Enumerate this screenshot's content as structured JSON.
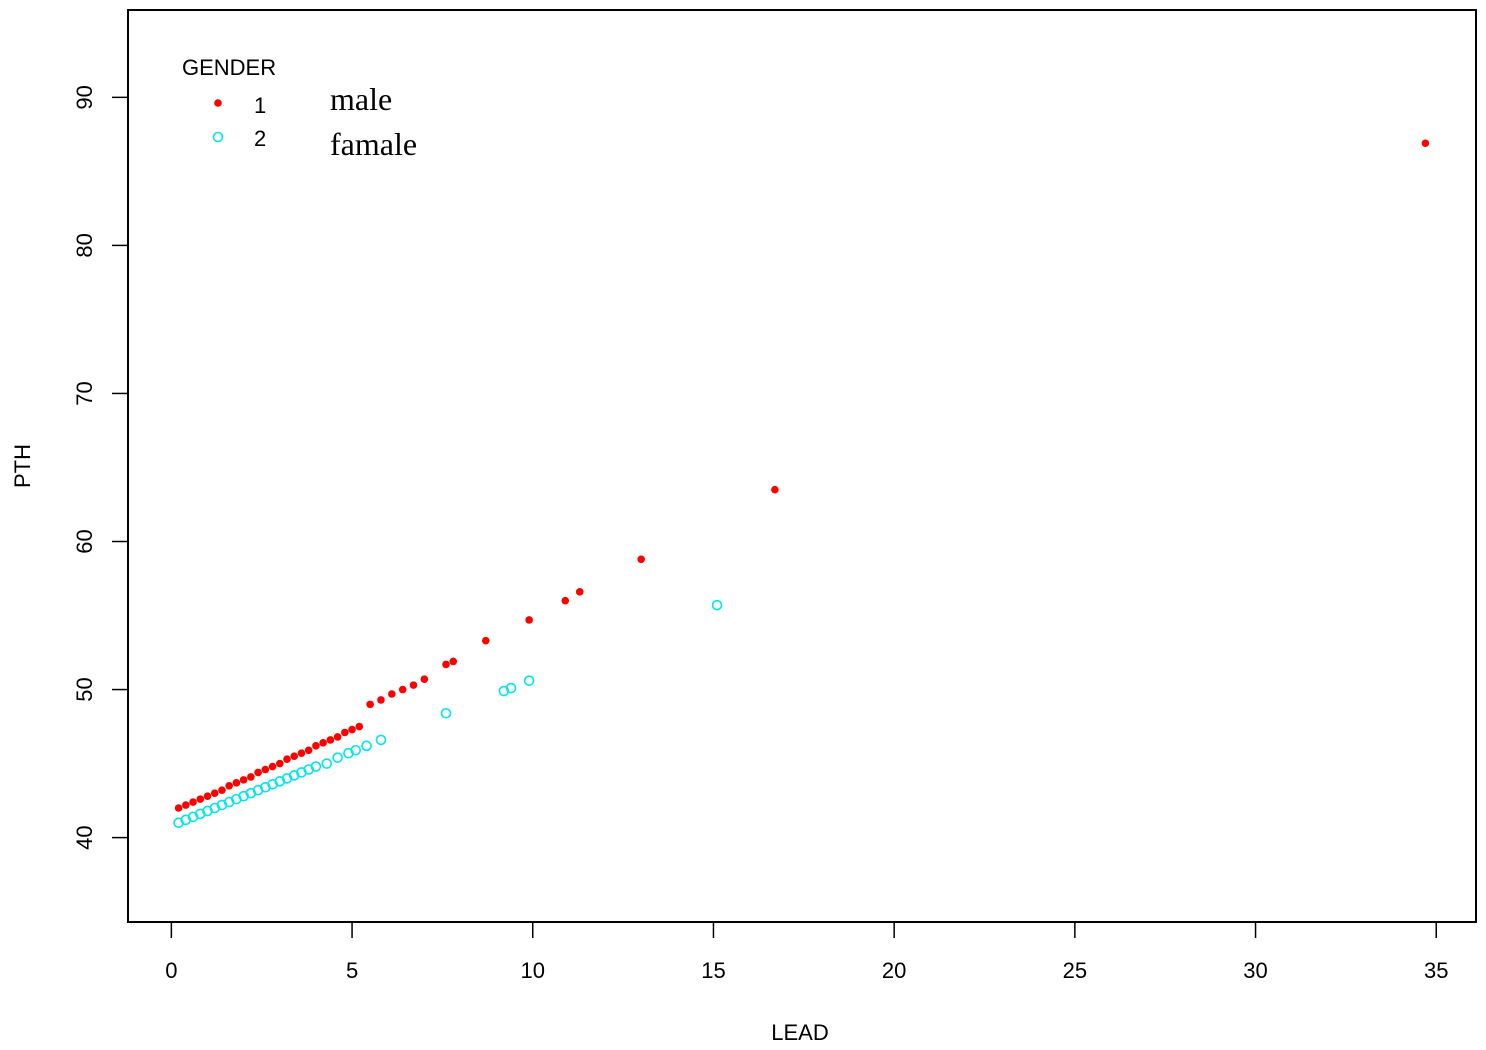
{
  "chart_data": {
    "type": "scatter",
    "title": "",
    "xlabel": "LEAD",
    "ylabel": "PTH",
    "xlim": [
      -1.2,
      36.1
    ],
    "ylim": [
      34.3,
      95.9
    ],
    "xticks": [
      0,
      5,
      10,
      15,
      20,
      25,
      30,
      35
    ],
    "yticks": [
      40,
      50,
      60,
      70,
      80,
      90
    ],
    "grid": false,
    "legend": {
      "placement": "top-left",
      "title": "GENDER",
      "entries": [
        {
          "code": "1",
          "label": "male",
          "color": "#ff0000",
          "marker": "filled-dot"
        },
        {
          "code": "2",
          "label": "famale",
          "color": "#00e5ee",
          "marker": "open-circle"
        }
      ]
    },
    "series": [
      {
        "name": "1",
        "color": "#ff0000",
        "marker": "filled-dot",
        "points": [
          [
            0.2,
            42.0
          ],
          [
            0.4,
            42.2
          ],
          [
            0.6,
            42.4
          ],
          [
            0.8,
            42.6
          ],
          [
            1.0,
            42.8
          ],
          [
            1.2,
            43.0
          ],
          [
            1.4,
            43.2
          ],
          [
            1.6,
            43.5
          ],
          [
            1.8,
            43.7
          ],
          [
            2.0,
            43.9
          ],
          [
            2.2,
            44.1
          ],
          [
            2.4,
            44.4
          ],
          [
            2.6,
            44.6
          ],
          [
            2.8,
            44.8
          ],
          [
            3.0,
            45.0
          ],
          [
            3.2,
            45.3
          ],
          [
            3.4,
            45.5
          ],
          [
            3.6,
            45.7
          ],
          [
            3.8,
            45.9
          ],
          [
            4.0,
            46.2
          ],
          [
            4.2,
            46.4
          ],
          [
            4.4,
            46.6
          ],
          [
            4.6,
            46.8
          ],
          [
            4.8,
            47.1
          ],
          [
            5.0,
            47.3
          ],
          [
            5.2,
            47.5
          ],
          [
            5.5,
            49.0
          ],
          [
            5.8,
            49.3
          ],
          [
            6.1,
            49.7
          ],
          [
            6.4,
            50.0
          ],
          [
            6.7,
            50.3
          ],
          [
            7.0,
            50.7
          ],
          [
            7.6,
            51.7
          ],
          [
            7.8,
            51.9
          ],
          [
            8.7,
            53.3
          ],
          [
            9.9,
            54.7
          ],
          [
            10.9,
            56.0
          ],
          [
            11.3,
            56.6
          ],
          [
            13.0,
            58.8
          ],
          [
            16.7,
            63.5
          ],
          [
            34.7,
            86.9
          ]
        ]
      },
      {
        "name": "2",
        "color": "#00e5ee",
        "marker": "open-circle",
        "points": [
          [
            0.2,
            41.0
          ],
          [
            0.4,
            41.2
          ],
          [
            0.6,
            41.4
          ],
          [
            0.8,
            41.6
          ],
          [
            1.0,
            41.8
          ],
          [
            1.2,
            42.0
          ],
          [
            1.4,
            42.2
          ],
          [
            1.6,
            42.4
          ],
          [
            1.8,
            42.6
          ],
          [
            2.0,
            42.8
          ],
          [
            2.2,
            43.0
          ],
          [
            2.4,
            43.2
          ],
          [
            2.6,
            43.4
          ],
          [
            2.8,
            43.6
          ],
          [
            3.0,
            43.8
          ],
          [
            3.2,
            44.0
          ],
          [
            3.4,
            44.2
          ],
          [
            3.6,
            44.4
          ],
          [
            3.8,
            44.6
          ],
          [
            4.0,
            44.8
          ],
          [
            4.3,
            45.0
          ],
          [
            4.6,
            45.4
          ],
          [
            4.9,
            45.7
          ],
          [
            5.1,
            45.9
          ],
          [
            5.4,
            46.2
          ],
          [
            5.8,
            46.6
          ],
          [
            7.6,
            48.4
          ],
          [
            9.2,
            49.9
          ],
          [
            9.4,
            50.1
          ],
          [
            9.9,
            50.6
          ],
          [
            15.1,
            55.7
          ]
        ]
      }
    ]
  }
}
